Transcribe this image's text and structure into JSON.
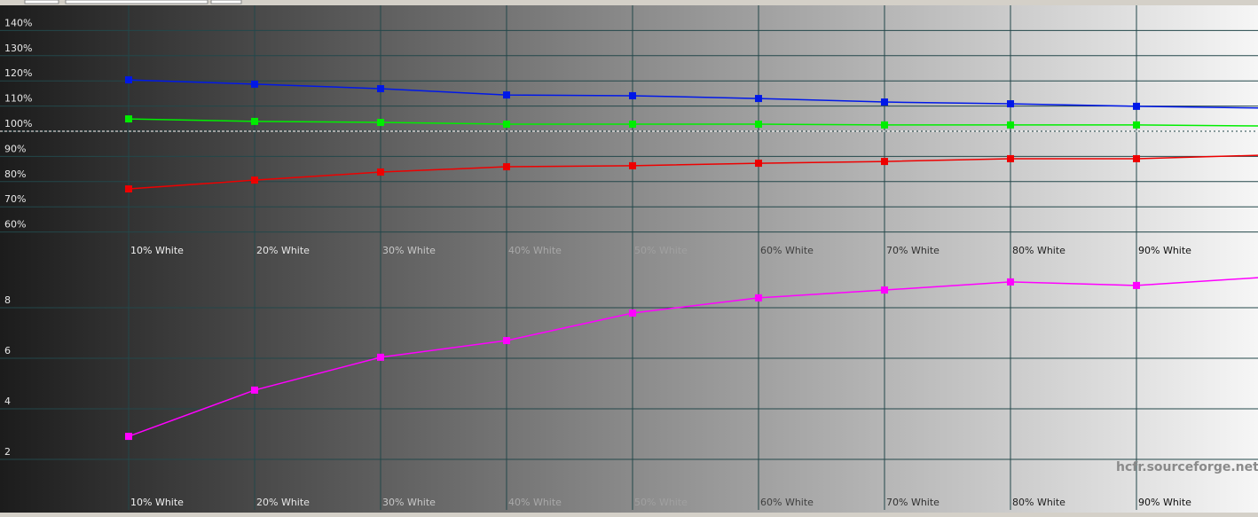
{
  "chart_data": [
    {
      "type": "line",
      "categories": [
        "10% White",
        "20% White",
        "30% White",
        "40% White",
        "50% White",
        "60% White",
        "70% White",
        "80% White",
        "90% White",
        null
      ],
      "ylim": [
        50,
        150
      ],
      "yticks": [
        {
          "value": 60,
          "label": "60%"
        },
        {
          "value": 70,
          "label": "70%"
        },
        {
          "value": 80,
          "label": "80%"
        },
        {
          "value": 90,
          "label": "90%"
        },
        {
          "value": 100,
          "label": "100%"
        },
        {
          "value": 110,
          "label": "110%"
        },
        {
          "value": 120,
          "label": "120%"
        },
        {
          "value": 130,
          "label": "130%"
        },
        {
          "value": 140,
          "label": "140%"
        }
      ],
      "grid": true,
      "reference": 100,
      "series": [
        {
          "color": "#0018e8",
          "values": [
            120.4,
            118.7,
            116.9,
            114.4,
            114.1,
            113.0,
            111.6,
            110.9,
            109.9,
            109.2
          ]
        },
        {
          "color": "#00ee00",
          "values": [
            104.9,
            103.9,
            103.5,
            102.8,
            102.8,
            102.8,
            102.5,
            102.5,
            102.5,
            102.1
          ]
        },
        {
          "color": "#ee0000",
          "values": [
            77.1,
            80.6,
            83.8,
            85.9,
            86.3,
            87.3,
            88.0,
            89.1,
            89.1,
            90.5
          ]
        }
      ]
    },
    {
      "type": "line",
      "categories": [
        "10% White",
        "20% White",
        "30% White",
        "40% White",
        "50% White",
        "60% White",
        "70% White",
        "80% White",
        "90% White",
        null
      ],
      "ylim": [
        0,
        10
      ],
      "yticks": [
        2,
        4,
        6,
        8
      ],
      "grid": true,
      "watermark": "hcfr.sourceforge.net",
      "series": [
        {
          "color": "#ff00ff",
          "values": [
            2.91,
            4.74,
            6.04,
            6.7,
            7.79,
            8.39,
            8.7,
            9.02,
            8.88,
            9.2
          ]
        }
      ]
    }
  ]
}
